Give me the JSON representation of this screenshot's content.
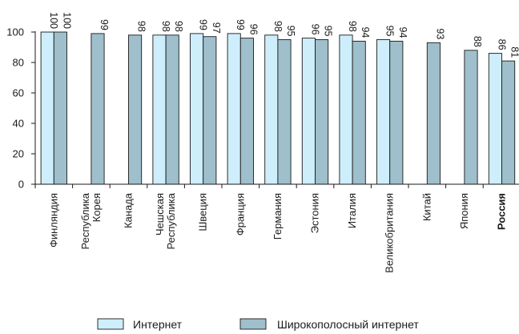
{
  "chart_data": {
    "type": "bar",
    "categories": [
      {
        "lines": [
          "Финляндия"
        ],
        "bold": false
      },
      {
        "lines": [
          "Республика",
          "Корея"
        ],
        "bold": false
      },
      {
        "lines": [
          "Канада"
        ],
        "bold": false
      },
      {
        "lines": [
          "Чешская",
          "Республика"
        ],
        "bold": false
      },
      {
        "lines": [
          "Швеция"
        ],
        "bold": false
      },
      {
        "lines": [
          "Франция"
        ],
        "bold": false
      },
      {
        "lines": [
          "Германия"
        ],
        "bold": false
      },
      {
        "lines": [
          "Эстония"
        ],
        "bold": false
      },
      {
        "lines": [
          "Италия"
        ],
        "bold": false
      },
      {
        "lines": [
          "Великобритания"
        ],
        "bold": false
      },
      {
        "lines": [
          "Китай"
        ],
        "bold": false
      },
      {
        "lines": [
          "Япония"
        ],
        "bold": false
      },
      {
        "lines": [
          "Россия"
        ],
        "bold": true
      }
    ],
    "series": [
      {
        "name": "Интернет",
        "color": "#cdeefa",
        "values": [
          100,
          null,
          null,
          98,
          99,
          99,
          98,
          96,
          98,
          95,
          null,
          null,
          86
        ]
      },
      {
        "name": "Широкополосный интернет",
        "color": "#9ebfcb",
        "values": [
          100,
          99,
          98,
          98,
          97,
          96,
          95,
          95,
          94,
          94,
          93,
          88,
          81
        ]
      }
    ],
    "yticks": [
      0,
      20,
      40,
      60,
      80,
      100
    ],
    "ylim": [
      0,
      100
    ],
    "title": "",
    "xlabel": "",
    "ylabel": "",
    "grid": false,
    "legend": "bottom"
  }
}
